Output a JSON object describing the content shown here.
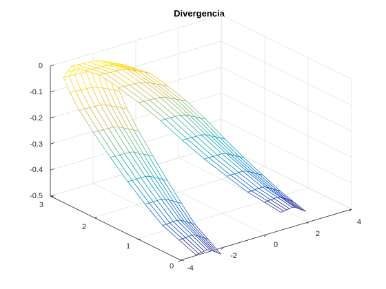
{
  "chart_data": {
    "type": "surface",
    "title": "Divergencia",
    "xlabel": "",
    "ylabel": "",
    "zlabel": "",
    "grid": true,
    "colormap": "parula",
    "x_ticks": [
      "-4",
      "-2",
      "0",
      "2",
      "4"
    ],
    "y_ticks": [
      "0",
      "1",
      "2",
      "3"
    ],
    "z_ticks": [
      "0",
      "-0.1",
      "-0.2",
      "-0.3",
      "-0.4",
      "-0.5"
    ],
    "xlim": [
      -4,
      4
    ],
    "ylim": [
      0,
      3
    ],
    "zlim": [
      -0.5,
      0
    ],
    "surface": {
      "description_of_shape": "parametric sheet",
      "u_steps": 17,
      "v_steps": 22
    }
  }
}
